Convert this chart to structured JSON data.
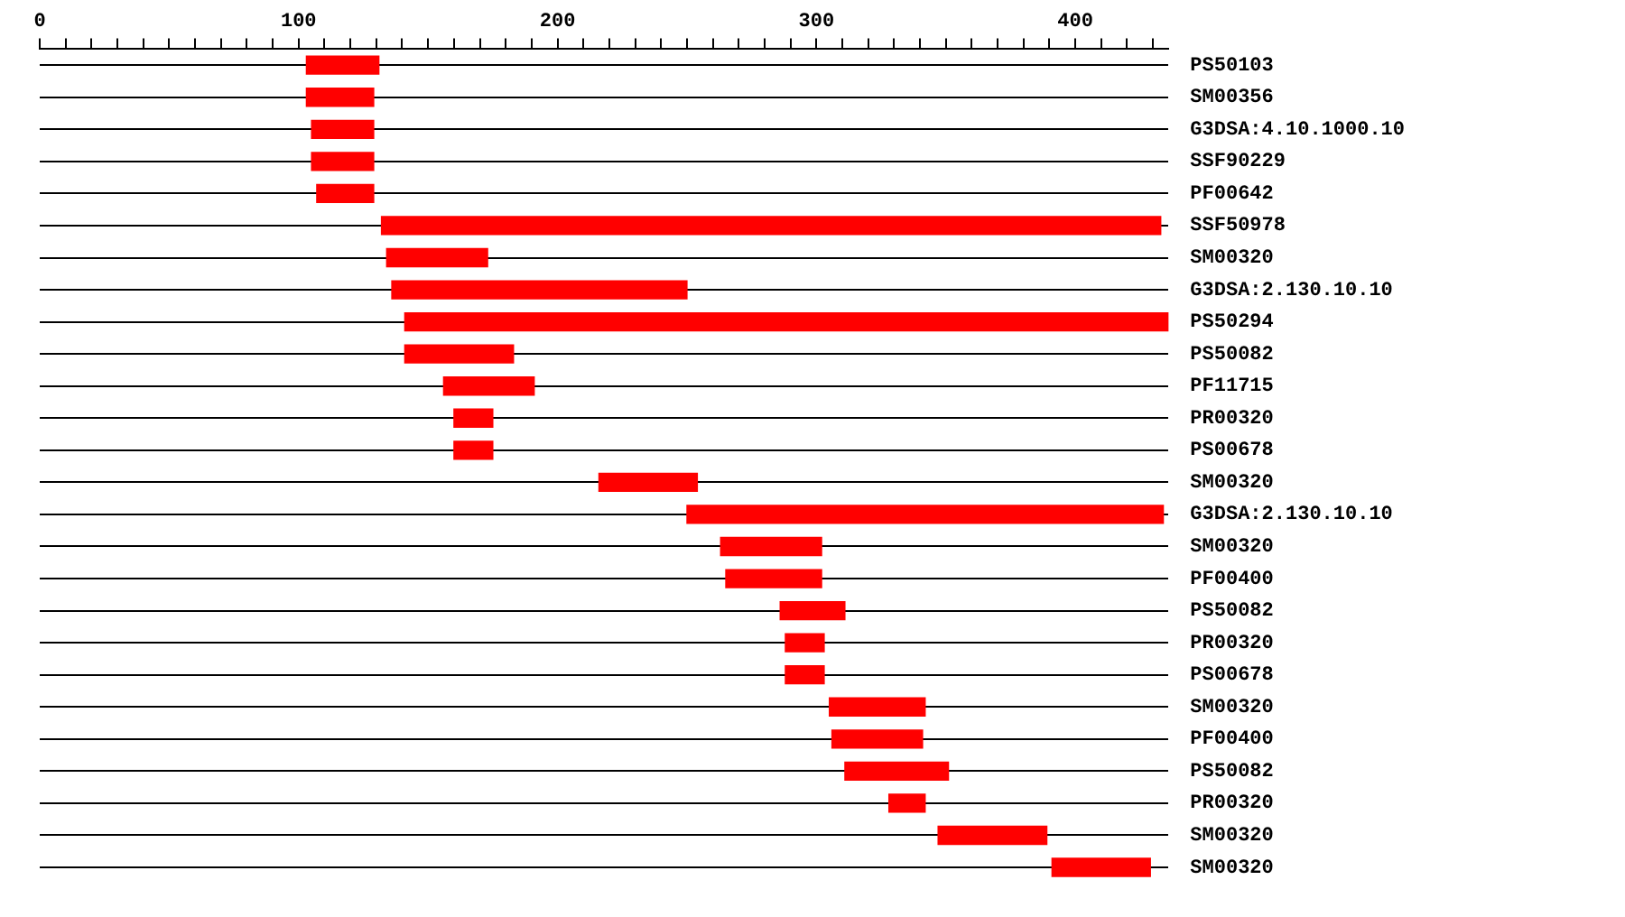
{
  "chart_data": {
    "type": "bar",
    "orientation": "horizontal",
    "legend": false,
    "grid": "y",
    "categories": [
      "PS50103",
      "SM00356",
      "G3DSA:4.10.1000.10",
      "SSF90229",
      "PF00642",
      "SSF50978",
      "SM00320",
      "G3DSA:2.130.10.10",
      "PS50294",
      "PS50082",
      "PF11715",
      "PR00320",
      "PS00678",
      "SM00320",
      "G3DSA:2.130.10.10",
      "SM00320",
      "PF00400",
      "PS50082",
      "PR00320",
      "PS00678",
      "SM00320",
      "PF00400",
      "PS50082",
      "PR00320",
      "SM00320",
      "SM00320"
    ],
    "base": [
      103,
      103,
      105,
      105,
      107,
      132,
      134,
      136,
      141,
      141,
      156,
      160,
      160,
      216,
      250,
      263,
      265,
      286,
      288,
      288,
      305,
      306,
      311,
      328,
      347,
      391
    ],
    "values": [
      28,
      26,
      24,
      24,
      22,
      301,
      39,
      114,
      295,
      42,
      35,
      15,
      15,
      38,
      184,
      39,
      37,
      25,
      15,
      15,
      37,
      35,
      40,
      14,
      42,
      38
    ],
    "color": "#ff0000",
    "xlim": [
      0,
      436
    ],
    "xticks": [
      0,
      {
        "value": 10,
        "label": null
      },
      {
        "value": 20,
        "label": null
      },
      {
        "value": 30,
        "label": null
      },
      {
        "value": 40,
        "label": null
      },
      {
        "value": 50,
        "label": null
      },
      {
        "value": 60,
        "label": null
      },
      {
        "value": 70,
        "label": null
      },
      {
        "value": 80,
        "label": null
      },
      {
        "value": 90,
        "label": null
      },
      100,
      {
        "value": 110,
        "label": null
      },
      {
        "value": 120,
        "label": null
      },
      {
        "value": 130,
        "label": null
      },
      {
        "value": 140,
        "label": null
      },
      {
        "value": 150,
        "label": null
      },
      {
        "value": 160,
        "label": null
      },
      {
        "value": 170,
        "label": null
      },
      {
        "value": 180,
        "label": null
      },
      {
        "value": 190,
        "label": null
      },
      200,
      {
        "value": 210,
        "label": null
      },
      {
        "value": 220,
        "label": null
      },
      {
        "value": 230,
        "label": null
      },
      {
        "value": 240,
        "label": null
      },
      {
        "value": 250,
        "label": null
      },
      {
        "value": 260,
        "label": null
      },
      {
        "value": 270,
        "label": null
      },
      {
        "value": 280,
        "label": null
      },
      {
        "value": 290,
        "label": null
      },
      300,
      {
        "value": 310,
        "label": null
      },
      {
        "value": 320,
        "label": null
      },
      {
        "value": 330,
        "label": null
      },
      {
        "value": 340,
        "label": null
      },
      {
        "value": 350,
        "label": null
      },
      {
        "value": 360,
        "label": null
      },
      {
        "value": 370,
        "label": null
      },
      {
        "value": 380,
        "label": null
      },
      {
        "value": 390,
        "label": null
      },
      400,
      {
        "value": 410,
        "label": null
      },
      {
        "value": 420,
        "label": null
      },
      {
        "value": 430,
        "label": null
      }
    ]
  }
}
